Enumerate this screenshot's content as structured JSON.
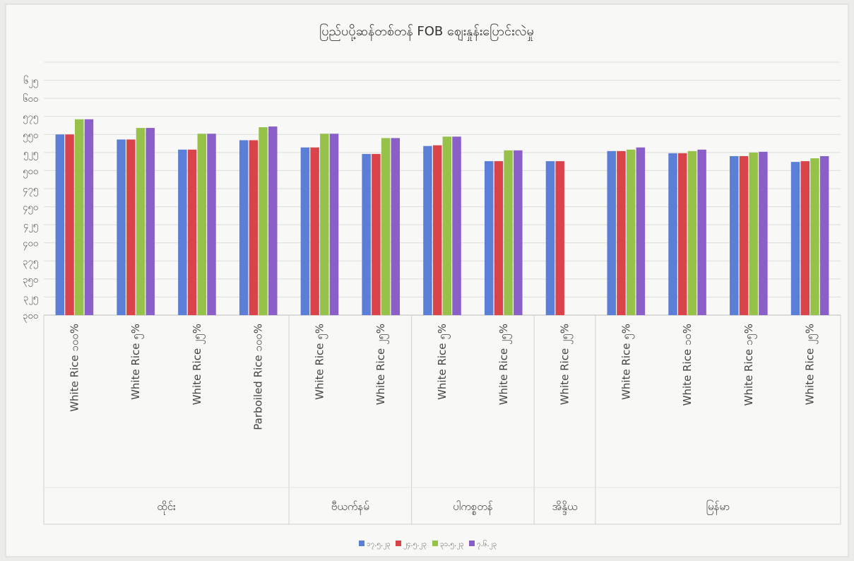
{
  "chart_data": {
    "type": "bar",
    "title": "ပြည်ပပို့ဆန်တစ်တန် FOB ဈေးနှုန်းပြောင်းလဲမှု",
    "xlabel": "",
    "ylabel": "",
    "ylim": [
      300,
      650
    ],
    "yticks": [
      "၃၀၀",
      "၃၂၅",
      "၃၅၀",
      "၃၇၅",
      "၄၀၀",
      "၄၂၅",
      "၄၅၀",
      "၄၇၅",
      "၅၀၀",
      "၅၂၅",
      "၅၅၀",
      "၅၇၅",
      "၆၀၀",
      "၆၂၅"
    ],
    "ytick_values": [
      300,
      325,
      350,
      375,
      400,
      425,
      450,
      475,
      500,
      525,
      550,
      575,
      600,
      625
    ],
    "grid": true,
    "legend_position": "bottom",
    "categories": [
      "White Rice ၁၀၀%",
      "White Rice ၅%",
      "White Rice ၂၅%",
      "Parboiled Rice ၁၀၀%",
      "White Rice ၅%",
      "White Rice ၂၅%",
      "White Rice ၅%",
      "White Rice ၂၅%",
      "White Rice ၂၅%",
      "White Rice ၅%",
      "White Rice ၁၀%",
      "White Rice ၁၅%",
      "White Rice ၂၅%"
    ],
    "groups": [
      {
        "label": "ထိုင်း",
        "count": 4
      },
      {
        "label": "ဗီယက်နမ်",
        "count": 2
      },
      {
        "label": "ပါကစ္စတန်",
        "count": 2
      },
      {
        "label": "အိန္ဒိယ",
        "count": 1
      },
      {
        "label": "မြန်မာ",
        "count": 4
      }
    ],
    "series": [
      {
        "name": "၁၇.၅.၂၃",
        "color": "#5b7fd6",
        "values": [
          550,
          543,
          529,
          542,
          532,
          523,
          534,
          513,
          513,
          527,
          524,
          520,
          512
        ]
      },
      {
        "name": "၂၄.၅.၂၃",
        "color": "#d9434a",
        "values": [
          550,
          543,
          529,
          542,
          532,
          523,
          535,
          513,
          513,
          527,
          524,
          520,
          513
        ]
      },
      {
        "name": "၃၁.၅.၂၃",
        "color": "#97c24a",
        "values": [
          571,
          559,
          551,
          560,
          551,
          545,
          547,
          528,
          null,
          529,
          527,
          525,
          517
        ]
      },
      {
        "name": "၇.၆.၂၃",
        "color": "#8a60c8",
        "values": [
          571,
          559,
          551,
          561,
          551,
          545,
          547,
          528,
          null,
          532,
          529,
          526,
          520
        ]
      }
    ]
  }
}
